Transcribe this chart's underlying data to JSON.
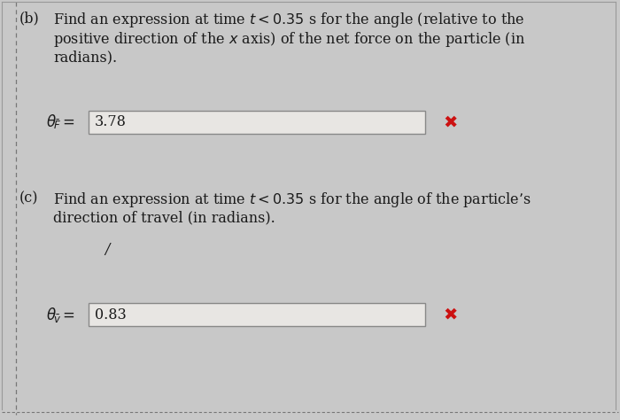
{
  "bg_color": "#c8c8c8",
  "panel_bg": "#e8e6e3",
  "text_color": "#1a1a1a",
  "border_color": "#999999",
  "dashed_color": "#777777",
  "part_b_label": "(b)",
  "part_b_line1": "Find an expression at time $t < 0.35$ s for the angle (relative to the",
  "part_b_line2": "positive direction of the $x$ axis) of the net force on the particle (in",
  "part_b_line3": "radians).",
  "part_b_eq_label": "$\\theta_{\\!\\bar{F}} =$",
  "part_b_eq_value": "3.78",
  "part_c_label": "(c)",
  "part_c_line1": "Find an expression at time $t < 0.35$ s for the angle of the particle’s",
  "part_c_line2": "direction of travel (in radians).",
  "part_c_eq_label": "$\\theta_{\\!\\bar{v}} =$",
  "part_c_eq_value": "0.83",
  "x_mark_color": "#cc1111",
  "input_box_color": "#e8e6e3",
  "input_box_border": "#888888",
  "cursor_slash": "/",
  "font_size_body": 11.5,
  "font_size_eq_label": 12,
  "font_size_eq_value": 11.5,
  "font_size_xmark": 14
}
